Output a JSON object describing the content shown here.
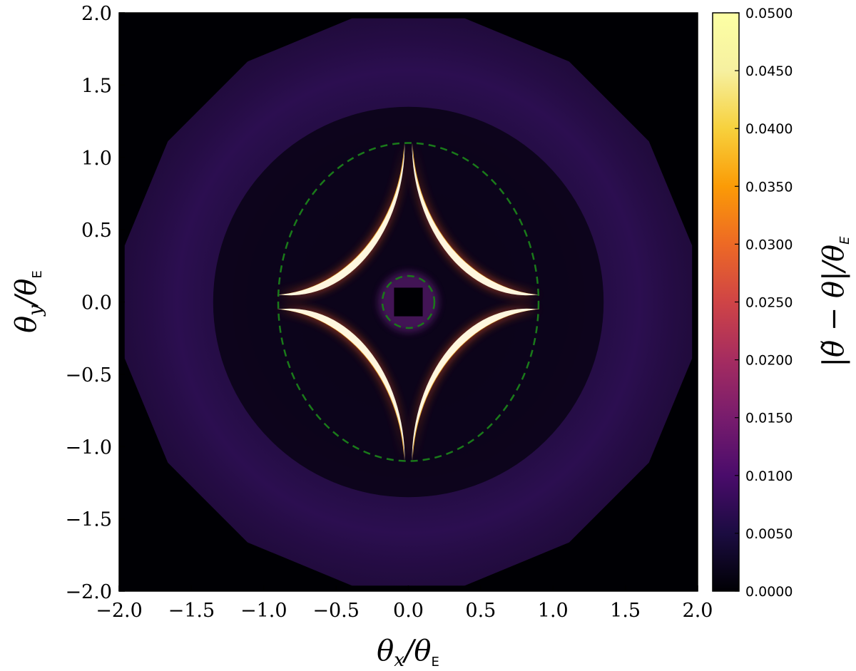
{
  "chart_data": {
    "type": "heatmap",
    "xlabel": "θx/θE",
    "ylabel": "θy/θE",
    "colorbar_label": "|θ̃ − θ|/θE",
    "xlim": [
      -2.0,
      2.0
    ],
    "ylim": [
      -2.0,
      2.0
    ],
    "x_ticks": [
      "−2.0",
      "−1.5",
      "−1.0",
      "−0.5",
      "0.0",
      "0.5",
      "1.0",
      "1.5",
      "2.0"
    ],
    "y_ticks": [
      "2.0",
      "1.5",
      "1.0",
      "0.5",
      "0.0",
      "−0.5",
      "−1.0",
      "−1.5",
      "−2.0"
    ],
    "x_tick_values": [
      -2.0,
      -1.5,
      -1.0,
      -0.5,
      0.0,
      0.5,
      1.0,
      1.5,
      2.0
    ],
    "y_tick_values": [
      2.0,
      1.5,
      1.0,
      0.5,
      0.0,
      -0.5,
      -1.0,
      -1.5,
      -2.0
    ],
    "colorbar_range": [
      0.0,
      0.05
    ],
    "colorbar_ticks": [
      "0.0500",
      "0.0450",
      "0.0400",
      "0.0350",
      "0.0300",
      "0.0250",
      "0.0200",
      "0.0150",
      "0.0100",
      "0.0050",
      "0.0000"
    ],
    "colorbar_tick_values": [
      0.05,
      0.045,
      0.04,
      0.035,
      0.03,
      0.025,
      0.02,
      0.015,
      0.01,
      0.005,
      0.0
    ],
    "colormap": "inferno",
    "critical_curves": {
      "style": "dashed",
      "color": "#1a7a1a",
      "outer_ellipse": {
        "center": [
          0.0,
          0.0
        ],
        "semi_x": 0.9,
        "semi_y": 1.1
      },
      "inner_circle": {
        "center": [
          0.0,
          0.0
        ],
        "radius": 0.18
      }
    },
    "grid": false
  }
}
